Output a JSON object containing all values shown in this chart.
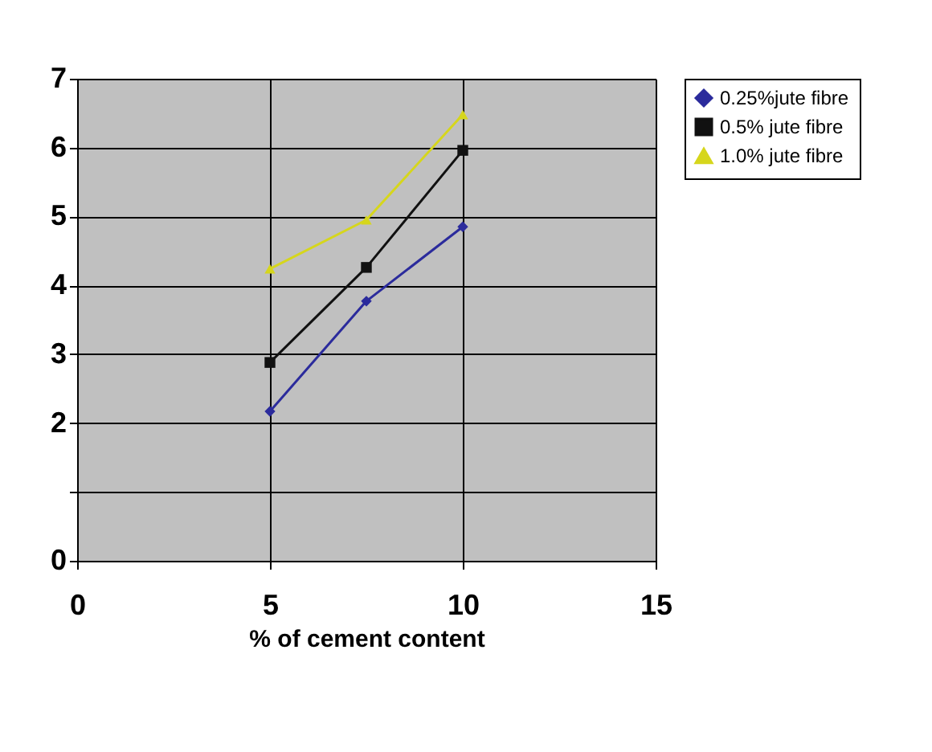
{
  "chart_data": {
    "type": "line",
    "xlabel": "% of cement content",
    "x": [
      5,
      7.5,
      10
    ],
    "series": [
      {
        "name": "0.25%jute fibre",
        "color": "#2b2b9c",
        "marker": "diamond",
        "values": [
          2.17,
          3.77,
          4.85
        ]
      },
      {
        "name": "0.5% jute fibre",
        "color": "#111111",
        "marker": "square",
        "values": [
          2.88,
          4.26,
          5.96
        ]
      },
      {
        "name": "1.0% jute fibre",
        "color": "#d6d61c",
        "marker": "triangle",
        "values": [
          4.24,
          4.95,
          6.48
        ]
      }
    ],
    "xlim": [
      0,
      15
    ],
    "xticks": [
      0,
      5,
      10,
      15
    ],
    "ylim": [
      0,
      7
    ],
    "yticks": [
      0,
      {
        "value": 1,
        "label": null
      },
      2,
      3,
      4,
      5,
      6,
      7
    ],
    "grid": true,
    "legend": "right",
    "line_style": "solid"
  }
}
